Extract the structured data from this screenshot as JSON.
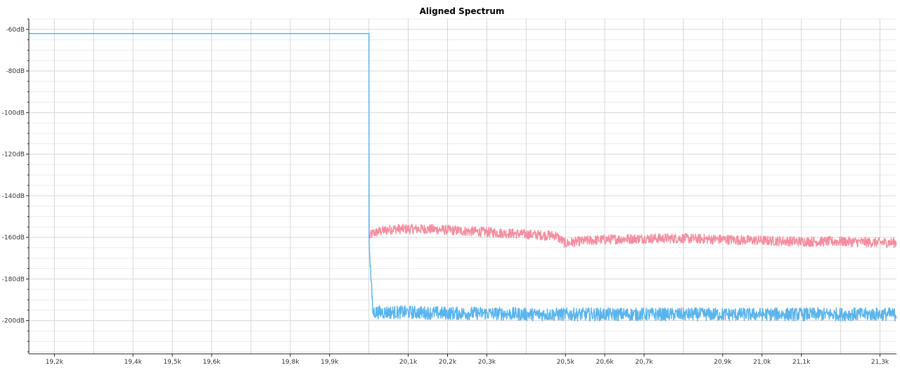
{
  "chart_data": {
    "type": "line",
    "title": "Aligned Spectrum",
    "xlabel": "",
    "ylabel": "",
    "xlim": [
      19135,
      21342
    ],
    "ylim": [
      -216,
      -55
    ],
    "x_ticks": [
      {
        "value": 19200,
        "label": "19,2k"
      },
      {
        "value": 19400,
        "label": "19,4k"
      },
      {
        "value": 19500,
        "label": "19,5k"
      },
      {
        "value": 19600,
        "label": "19,6k"
      },
      {
        "value": 19800,
        "label": "19,8k"
      },
      {
        "value": 19900,
        "label": "19,9k"
      },
      {
        "value": 20100,
        "label": "20,1k"
      },
      {
        "value": 20200,
        "label": "20,2k"
      },
      {
        "value": 20300,
        "label": "20,3k"
      },
      {
        "value": 20500,
        "label": "20,5k"
      },
      {
        "value": 20600,
        "label": "20,6k"
      },
      {
        "value": 20700,
        "label": "20,7k"
      },
      {
        "value": 20900,
        "label": "20,9k"
      },
      {
        "value": 21000,
        "label": "21,0k"
      },
      {
        "value": 21100,
        "label": "21,1k"
      },
      {
        "value": 21300,
        "label": "21,3k"
      }
    ],
    "x_gridlines": [
      19200,
      19300,
      19400,
      19500,
      19600,
      19700,
      19800,
      19900,
      20000,
      20100,
      20200,
      20300,
      20400,
      20500,
      20600,
      20700,
      20800,
      20900,
      21000,
      21100,
      21200,
      21300
    ],
    "y_ticks": [
      {
        "value": -60,
        "label": "-60dB"
      },
      {
        "value": -80,
        "label": "-80dB"
      },
      {
        "value": -100,
        "label": "-100dB"
      },
      {
        "value": -120,
        "label": "-120dB"
      },
      {
        "value": -140,
        "label": "-140dB"
      },
      {
        "value": -160,
        "label": "-160dB"
      },
      {
        "value": -180,
        "label": "-180dB"
      },
      {
        "value": -200,
        "label": "-200dB"
      }
    ],
    "grid": true,
    "legend": "none",
    "series": [
      {
        "color": "#f48ea0",
        "x": [
          19135,
          20000,
          20000.5,
          20010,
          20030,
          20060,
          20100,
          20150,
          20200,
          20250,
          20300,
          20350,
          20400,
          20450,
          20475,
          20500,
          20530,
          20560,
          20600,
          20700,
          20800,
          20900,
          21000,
          21100,
          21200,
          21300,
          21342
        ],
        "y": [
          -62,
          -62,
          -160,
          -158,
          -157,
          -156,
          -156,
          -156,
          -156.5,
          -157,
          -157.5,
          -158,
          -158.5,
          -159,
          -159,
          -163,
          -162,
          -161.5,
          -161,
          -160.5,
          -160.5,
          -161,
          -161.5,
          -162,
          -162,
          -162.5,
          -162.5
        ]
      },
      {
        "color": "#5ab4ec",
        "x": [
          19135,
          20000,
          20000.5,
          20010,
          20100,
          20200,
          20300,
          20400,
          20500,
          20600,
          20700,
          20800,
          20900,
          21000,
          21100,
          21200,
          21300,
          21342
        ],
        "y": [
          -62,
          -62,
          -162,
          -196,
          -196,
          -196.5,
          -196.5,
          -197,
          -197,
          -197,
          -197,
          -197,
          -197,
          -197,
          -197,
          -197,
          -197,
          -197
        ]
      }
    ]
  }
}
